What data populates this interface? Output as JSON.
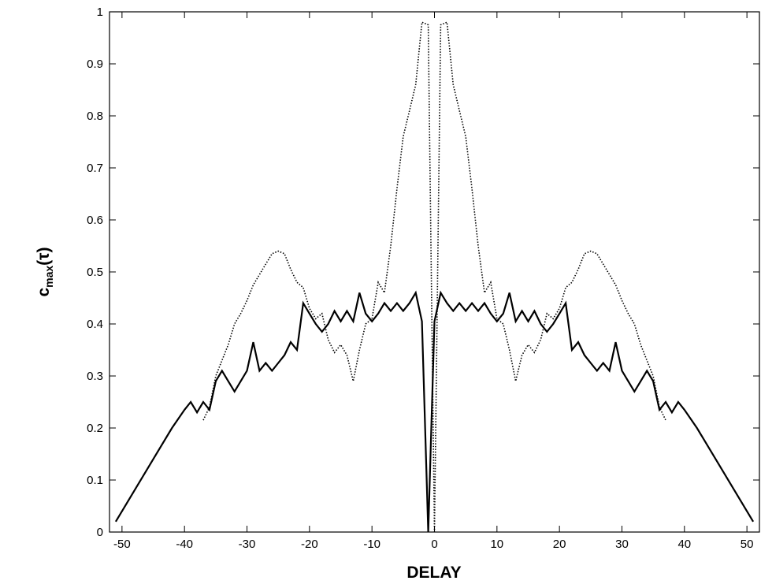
{
  "chart_data": {
    "type": "line",
    "title": "",
    "xlabel": "DELAY",
    "ylabel": {
      "base": "c",
      "sub": "max",
      "arg": "(τ)"
    },
    "xlim": [
      -52,
      52
    ],
    "ylim": [
      0,
      1
    ],
    "xticks": [
      -50,
      -40,
      -30,
      -20,
      -10,
      0,
      10,
      20,
      30,
      40,
      50
    ],
    "yticks": [
      0,
      0.1,
      0.2,
      0.3,
      0.4,
      0.5,
      0.6,
      0.7,
      0.8,
      0.9,
      1
    ],
    "ytick_labels": [
      "0",
      "0.1",
      "0.2",
      "0.3",
      "0.4",
      "0.5",
      "0.6",
      "0.7",
      "0.8",
      "0.9",
      "1"
    ],
    "grid": false,
    "series": [
      {
        "style": "solid",
        "x": [
          -51,
          -48,
          -45,
          -42,
          -40,
          -39,
          -38,
          -37,
          -36,
          -35,
          -34,
          -33,
          -32,
          -31,
          -30,
          -29,
          -28,
          -27,
          -26,
          -25,
          -24,
          -23,
          -22,
          -21,
          -20,
          -19,
          -18,
          -17,
          -16,
          -15,
          -14,
          -13,
          -12,
          -11,
          -10,
          -9,
          -8,
          -7,
          -6,
          -5,
          -4,
          -3,
          -2,
          -1,
          0,
          1,
          2,
          3,
          4,
          5,
          6,
          7,
          8,
          9,
          10,
          11,
          12,
          13,
          14,
          15,
          16,
          17,
          18,
          19,
          20,
          21,
          22,
          23,
          24,
          25,
          26,
          27,
          28,
          29,
          30,
          31,
          32,
          33,
          34,
          35,
          36,
          37,
          38,
          39,
          40,
          42,
          45,
          48,
          51
        ],
        "y": [
          0.02,
          0.08,
          0.14,
          0.2,
          0.235,
          0.25,
          0.23,
          0.25,
          0.235,
          0.29,
          0.31,
          0.29,
          0.27,
          0.29,
          0.31,
          0.365,
          0.31,
          0.325,
          0.31,
          0.325,
          0.34,
          0.365,
          0.35,
          0.44,
          0.42,
          0.4,
          0.385,
          0.4,
          0.425,
          0.405,
          0.425,
          0.405,
          0.46,
          0.42,
          0.405,
          0.42,
          0.44,
          0.425,
          0.44,
          0.425,
          0.44,
          0.46,
          0.405,
          0.0,
          0.405,
          0.46,
          0.44,
          0.425,
          0.44,
          0.425,
          0.44,
          0.425,
          0.44,
          0.42,
          0.405,
          0.42,
          0.46,
          0.405,
          0.425,
          0.405,
          0.425,
          0.4,
          0.385,
          0.4,
          0.42,
          0.44,
          0.35,
          0.365,
          0.34,
          0.325,
          0.31,
          0.325,
          0.31,
          0.365,
          0.31,
          0.29,
          0.27,
          0.29,
          0.31,
          0.29,
          0.235,
          0.25,
          0.23,
          0.25,
          0.235,
          0.2,
          0.14,
          0.08,
          0.02
        ]
      },
      {
        "style": "dotted",
        "x": [
          -37,
          -36,
          -35,
          -34,
          -33,
          -32,
          -31,
          -30,
          -29,
          -28,
          -27,
          -26,
          -25,
          -24,
          -23,
          -22,
          -21,
          -20,
          -19,
          -18,
          -17,
          -16,
          -15,
          -14,
          -13,
          -12,
          -11,
          -10,
          -9,
          -8,
          -7,
          -6,
          -5,
          -4,
          -3,
          -2,
          -1,
          0,
          1,
          2,
          3,
          4,
          5,
          6,
          7,
          8,
          9,
          10,
          11,
          12,
          13,
          14,
          15,
          16,
          17,
          18,
          19,
          20,
          21,
          22,
          23,
          24,
          25,
          26,
          27,
          28,
          29,
          30,
          31,
          32,
          33,
          34,
          35,
          36,
          37
        ],
        "y": [
          0.215,
          0.24,
          0.3,
          0.33,
          0.36,
          0.4,
          0.42,
          0.445,
          0.475,
          0.495,
          0.515,
          0.535,
          0.54,
          0.535,
          0.505,
          0.48,
          0.47,
          0.43,
          0.41,
          0.42,
          0.37,
          0.345,
          0.36,
          0.34,
          0.29,
          0.35,
          0.4,
          0.41,
          0.48,
          0.46,
          0.55,
          0.66,
          0.76,
          0.81,
          0.86,
          0.98,
          0.975,
          0.0,
          0.975,
          0.98,
          0.86,
          0.81,
          0.76,
          0.66,
          0.55,
          0.46,
          0.48,
          0.41,
          0.4,
          0.35,
          0.29,
          0.34,
          0.36,
          0.345,
          0.37,
          0.42,
          0.41,
          0.43,
          0.47,
          0.48,
          0.505,
          0.535,
          0.54,
          0.535,
          0.515,
          0.495,
          0.475,
          0.445,
          0.42,
          0.4,
          0.36,
          0.33,
          0.3,
          0.24,
          0.215
        ]
      }
    ]
  }
}
